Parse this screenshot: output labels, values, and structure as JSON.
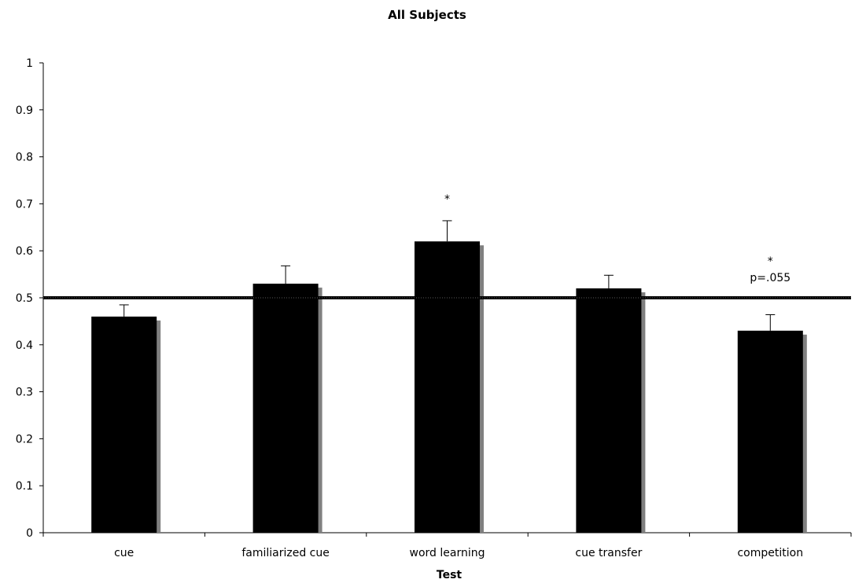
{
  "chart_data": {
    "type": "bar",
    "title": "All Subjects",
    "xlabel": "Test",
    "ylabel": "",
    "ylim": [
      0,
      1
    ],
    "yticks": [
      0,
      0.1,
      0.2,
      0.3,
      0.4,
      0.5,
      0.6,
      0.7,
      0.8,
      0.9,
      1
    ],
    "ytick_labels": [
      "0",
      "0.1",
      "0.2",
      "0.3",
      "0.4",
      "0.5",
      "0.6",
      "0.7",
      "0.8",
      "0.9",
      "1"
    ],
    "categories": [
      "cue",
      "familiarized cue",
      "word learning",
      "cue transfer",
      "competition"
    ],
    "values": [
      0.46,
      0.53,
      0.62,
      0.52,
      0.43
    ],
    "error_upper": [
      0.025,
      0.038,
      0.044,
      0.028,
      0.034
    ],
    "reference_line": 0.5,
    "annotations": [
      {
        "category_index": 2,
        "lines": [
          "*"
        ]
      },
      {
        "category_index": 4,
        "lines": [
          "*",
          "p=.055"
        ]
      }
    ],
    "colors": {
      "bar": "#000000",
      "bar_shadow": "#808080",
      "reference_line": "#000000"
    },
    "grid": false,
    "legend": "none"
  }
}
